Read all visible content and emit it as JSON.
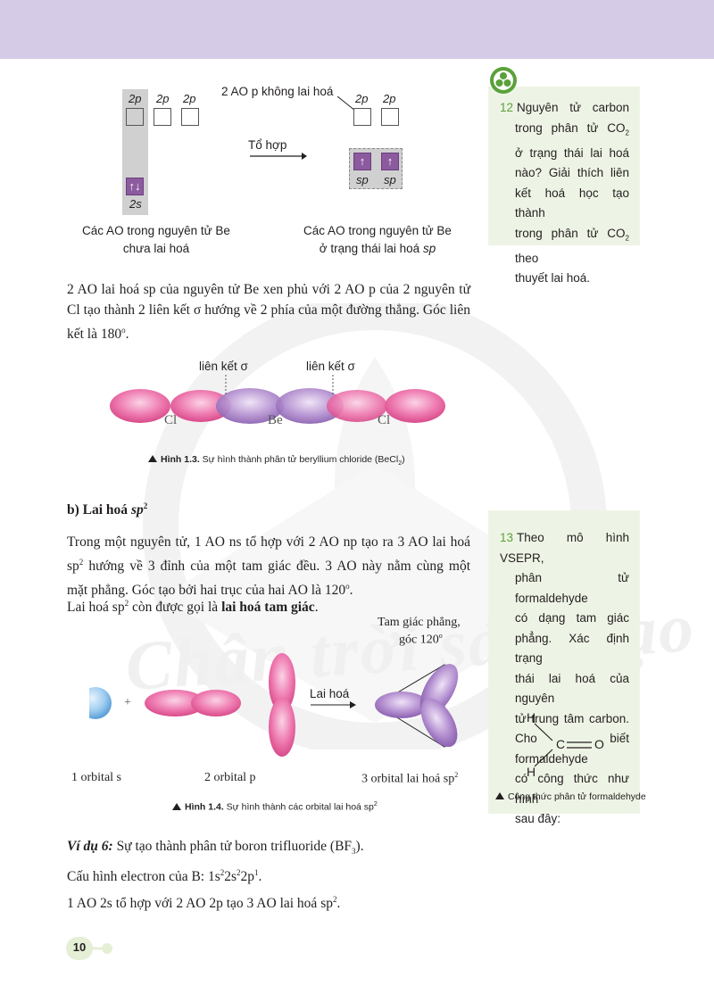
{
  "colors": {
    "header_band": "#d5cbe7",
    "accent_green": "#5aa13a",
    "side_bg": "#eef4e5",
    "orbital_pink": "#e8609a",
    "orbital_purple": "#9a6cc0",
    "orbital_blue": "#8ec3ea",
    "box_fill": "#8c5a9e"
  },
  "orbital_diagram": {
    "left": {
      "label_2p_1": "2p",
      "label_2p_2": "2p",
      "label_2p_3": "2p",
      "label_2s": "2s",
      "electrons_2s": "↑↓",
      "caption_line1": "Các AO trong nguyên tử Be",
      "caption_line2": "chưa lai hoá"
    },
    "arrow_label": "Tổ hợp",
    "right": {
      "unhybrid_label": "2 AO p không lai hoá",
      "label_2p_1": "2p",
      "label_2p_2": "2p",
      "sp_1": "sp",
      "sp_2": "sp",
      "electron_1": "↑",
      "electron_2": "↑",
      "caption_line1": "Các AO trong nguyên tử Be",
      "caption_line2_prefix": "ở trạng thái lai hoá ",
      "caption_line2_italic": "sp"
    }
  },
  "paragraph1": {
    "text_prefix": "2 AO lai hoá sp của nguyên tử Be xen phủ với 2 AO p của 2 nguyên tử Cl tạo thành 2 liên kết σ hướng về 2 phía của một đường thẳng. Góc liên kết là 180",
    "sup": "o",
    "text_suffix": "."
  },
  "figure13": {
    "bond_label_1": "liên kết σ",
    "bond_label_2": "liên kết σ",
    "atom_cl_1": "Cl",
    "atom_be": "Be",
    "atom_cl_2": "Cl",
    "caption_bold": "Hình 1.3.",
    "caption_text": " Sự hình thành phân tử beryllium chloride (BeCl",
    "caption_sub": "2",
    "caption_end": ")"
  },
  "section_b": {
    "prefix": "b) Lai hoá ",
    "italic": "sp",
    "sup": "2"
  },
  "paragraph2": {
    "l1": "Trong một nguyên tử, 1 AO ns tổ hợp với 2 AO np tạo ra 3 AO lai hoá",
    "l2a": "sp",
    "l2sup": "2",
    "l2b": " hướng về 3 đỉnh của một tam giác đều. 3 AO này nằm cùng một",
    "l3a": "mặt phẳng. Góc tạo bởi hai trục của hai AO là 120",
    "l3sup": "o",
    "l3b": "."
  },
  "paragraph3": {
    "a": "Lai hoá sp",
    "sup": "2",
    "b": " còn được gọi là ",
    "bold": "lai hoá tam giác",
    "c": "."
  },
  "figure14": {
    "plus": "+",
    "arrow_label": "Lai hoá",
    "triangle_label_1": "Tam giác phẳng,",
    "triangle_label_2": "góc 120",
    "triangle_label_sup": "o",
    "label_s": "1 orbital s",
    "label_p": "2 orbital p",
    "label_sp2_prefix": "3 orbital lai hoá sp",
    "label_sp2_sup": "2",
    "caption_bold": "Hình 1.4.",
    "caption_text": " Sự hình thành các orbital lai hoá sp",
    "caption_sup": "2"
  },
  "example6": {
    "bold_italic": "Ví dụ 6:",
    "text": " Sự tạo thành phân tử boron trifluoride (BF",
    "sub": "3",
    "end": ")."
  },
  "config_line": {
    "a": "Cấu hình electron của B: 1s",
    "s1": "2",
    "b": "2s",
    "s2": "2",
    "c": "2p",
    "s3": "1",
    "d": "."
  },
  "combine_line": {
    "a": "1 AO 2s tổ hợp với 2 AO 2p tạo 3 AO lai hoá sp",
    "sup": "2",
    "b": "."
  },
  "page_number": "10",
  "question12": {
    "number": "12",
    "l1": "Nguyên tử carbon",
    "l2a": "trong phân tử CO",
    "l2sub": "2",
    "l3": "ở trạng thái lai hoá",
    "l4": "nào? Giải thích liên",
    "l5": "kết hoá học tạo thành",
    "l6a": "trong phân tử CO",
    "l6sub": "2",
    "l6b": " theo",
    "l7": "thuyết lai hoá."
  },
  "question13": {
    "number": "13",
    "l1": "Theo mô hình VSEPR,",
    "l2": "phân tử formaldehyde",
    "l3": "có dạng tam giác",
    "l4": "phẳng. Xác định trạng",
    "l5": "thái lai hoá của nguyên",
    "l6": "tử trung tâm carbon.",
    "l7": "Cho biết formaldehyde",
    "l8": "có công thức như hình",
    "l9": "sau đây:",
    "atom_h1": "H",
    "atom_h2": "H",
    "atom_c": "C",
    "atom_o": "O",
    "caption": "Công thức phân tử formaldehyde"
  },
  "watermark": "Chân trời sáng tạo"
}
